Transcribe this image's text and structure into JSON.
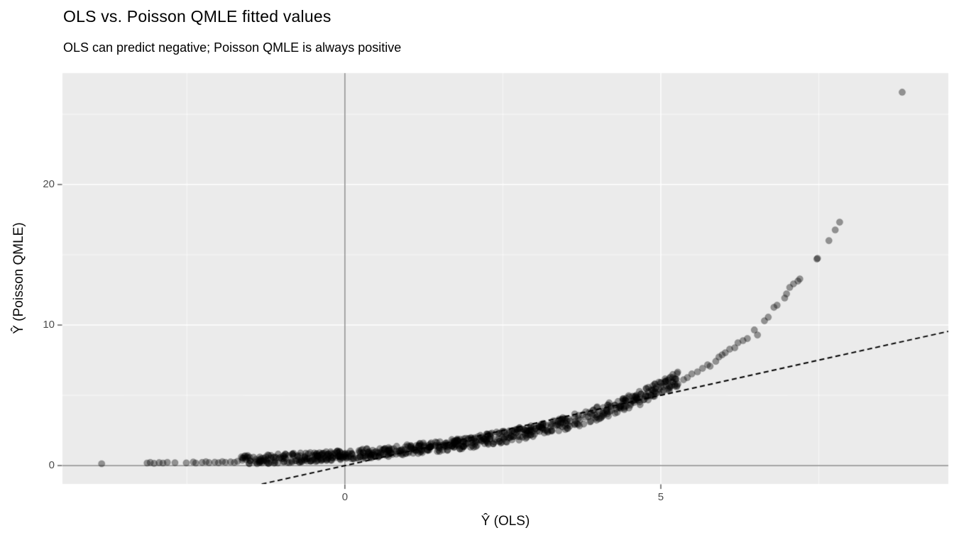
{
  "chart_data": {
    "type": "scatter",
    "title": "OLS vs. Poisson QMLE fitted values",
    "subtitle": "OLS can predict negative; Poisson QMLE is always positive",
    "xlabel": "Ŷ (OLS)",
    "ylabel": "Ŷ (Poisson QMLE)",
    "xlim": [
      -4.47,
      9.55
    ],
    "ylim": [
      -1.31,
      27.93
    ],
    "x_ticks": {
      "values": [
        0,
        5
      ],
      "labels": [
        "0",
        "5"
      ]
    },
    "y_ticks": {
      "values": [
        0,
        10,
        20
      ],
      "labels": [
        "0",
        "10",
        "20"
      ]
    },
    "x_minor": [
      -2.5,
      2.5,
      7.5
    ],
    "y_minor": [
      5,
      15,
      25
    ],
    "grid": true,
    "legend": "none",
    "reference_lines": {
      "vline_x": 0,
      "hline_y": 0
    },
    "identity_line": {
      "slope": 1,
      "intercept": 0,
      "style": "dashed",
      "dash": [
        7,
        4.5
      ],
      "width": 2
    },
    "point_style": {
      "alpha": 0.38,
      "radius": 4.6,
      "stroke_alpha": 0.16
    },
    "dense_band": {
      "comment": "dense overlapping fitted-value points following y = exp(a + b*x) with vertical noise",
      "x_min": -1.65,
      "x_max": 5.3,
      "n": 720,
      "curve": "y = exp(a + b*x)",
      "a": -0.29,
      "b": 0.4,
      "noise_amp0": 0.33,
      "noise_amp_slope": 0.04,
      "y_floor": 0.04,
      "seed": 42
    },
    "sparse_points": [
      [
        -3.85,
        0.13
      ],
      [
        -3.13,
        0.18
      ],
      [
        -3.08,
        0.22
      ],
      [
        -3.02,
        0.16
      ],
      [
        -2.94,
        0.21
      ],
      [
        -2.88,
        0.18
      ],
      [
        -2.81,
        0.23
      ],
      [
        -2.69,
        0.2
      ],
      [
        -2.51,
        0.19
      ],
      [
        -2.4,
        0.25
      ],
      [
        -2.36,
        0.18
      ],
      [
        -2.26,
        0.22
      ],
      [
        -2.2,
        0.27
      ],
      [
        -2.15,
        0.21
      ],
      [
        -2.06,
        0.24
      ],
      [
        -2.0,
        0.2
      ],
      [
        -1.94,
        0.28
      ],
      [
        -1.89,
        0.23
      ],
      [
        -1.81,
        0.26
      ],
      [
        -1.75,
        0.22
      ],
      [
        -1.7,
        0.3
      ],
      [
        5.36,
        6.11
      ],
      [
        5.42,
        6.26
      ],
      [
        5.49,
        6.52
      ],
      [
        5.58,
        6.67
      ],
      [
        5.66,
        6.92
      ],
      [
        5.74,
        7.17
      ],
      [
        5.78,
        7.07
      ],
      [
        5.87,
        7.42
      ],
      [
        5.92,
        7.73
      ],
      [
        5.97,
        7.88
      ],
      [
        6.02,
        8.03
      ],
      [
        6.09,
        8.28
      ],
      [
        6.17,
        8.38
      ],
      [
        6.22,
        8.74
      ],
      [
        6.3,
        8.89
      ],
      [
        6.37,
        9.04
      ],
      [
        6.48,
        9.65
      ],
      [
        6.53,
        9.29
      ],
      [
        6.64,
        10.3
      ],
      [
        6.7,
        10.56
      ],
      [
        6.79,
        11.26
      ],
      [
        6.84,
        11.41
      ],
      [
        6.96,
        11.92
      ],
      [
        6.99,
        12.22
      ],
      [
        7.04,
        12.68
      ],
      [
        7.1,
        12.93
      ],
      [
        7.17,
        13.13
      ],
      [
        7.2,
        13.28
      ],
      [
        7.47,
        14.7
      ],
      [
        7.48,
        14.75
      ],
      [
        7.66,
        16.01
      ],
      [
        7.76,
        16.77
      ],
      [
        7.83,
        17.32
      ],
      [
        8.82,
        26.57
      ]
    ],
    "colors": {
      "panel_bg": "#ebebeb",
      "grid": "#ffffff",
      "reference_line": "#999999",
      "point": "#000000",
      "identity_line": "#000000",
      "tick_mark": "#333333",
      "tick_label": "#4d4d4d",
      "text": "#000000"
    }
  }
}
